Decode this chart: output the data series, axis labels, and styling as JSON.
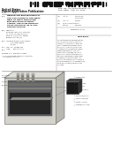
{
  "bg_color": "#ffffff",
  "barcode_color": "#111111",
  "text_dark": "#111111",
  "text_mid": "#333333",
  "text_light": "#666666",
  "line_color": "#888888",
  "diagram_outer_face": "#d4d4cc",
  "diagram_top_face": "#e0e0d8",
  "diagram_right_face": "#b8b8b0",
  "diagram_left_face": "#c0c0b8",
  "diagram_interior": "#585858",
  "diagram_plate": "#282828",
  "diagram_plate2": "#1a1a20",
  "counter_box": "#1a1a1a",
  "abstract_bg": "#e0e0e0",
  "connector_color": "#555555"
}
